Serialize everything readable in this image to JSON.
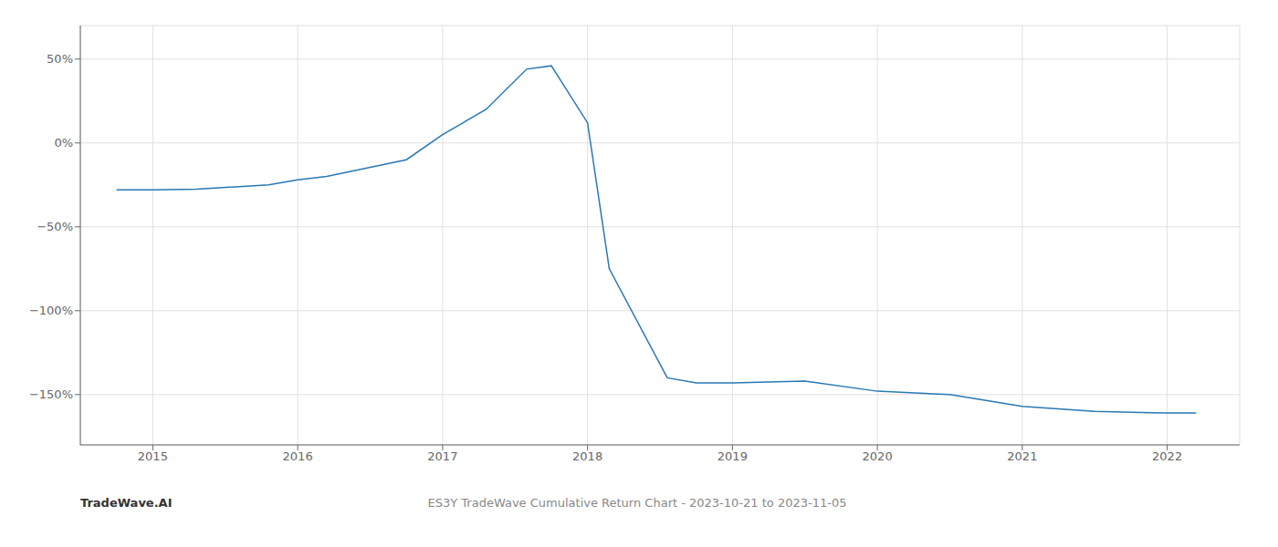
{
  "chart_data": {
    "type": "line",
    "title": "ES3Y TradeWave Cumulative Return Chart - 2023-10-21 to 2023-11-05",
    "annotations": [
      "TradeWave.AI"
    ],
    "x": [
      2014.75,
      2015.0,
      2015.3,
      2015.8,
      2016.0,
      2016.2,
      2016.75,
      2017.0,
      2017.3,
      2017.58,
      2017.75,
      2018.0,
      2018.15,
      2018.55,
      2018.75,
      2019.0,
      2019.5,
      2020.0,
      2020.5,
      2021.0,
      2021.5,
      2022.0,
      2022.2
    ],
    "values": [
      -28,
      -28,
      -27.5,
      -25,
      -22,
      -20,
      -10,
      5,
      20,
      44,
      46,
      12,
      -75,
      -140,
      -143,
      -143,
      -142,
      -148,
      -150,
      -157,
      -160,
      -161,
      -161
    ],
    "color": "#2878b5",
    "xlim": [
      2014.5,
      2022.5
    ],
    "ylim": [
      -180,
      70
    ],
    "xticks": [
      2015,
      2016,
      2017,
      2018,
      2019,
      2020,
      2021,
      2022
    ],
    "yticks": [
      {
        "value": 50,
        "label": "50%"
      },
      {
        "value": 0,
        "label": "0%"
      },
      {
        "value": -50,
        "label": "−50%"
      },
      {
        "value": -100,
        "label": "−100%"
      },
      {
        "value": -150,
        "label": "−150%"
      }
    ],
    "grid": true
  }
}
